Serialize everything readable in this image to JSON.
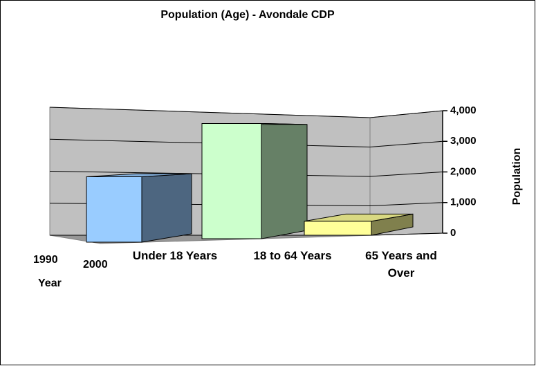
{
  "chart_data": {
    "type": "bar3d",
    "title": "Population (Age) - Avondale CDP",
    "categories": [
      "Under 18 Years",
      "18 to 64 Years",
      "65 Years and Over"
    ],
    "depth_categories": [
      "1990",
      "2000"
    ],
    "depth_label": "Year",
    "y_label": "Population",
    "values": [
      2100,
      3700,
      450
    ],
    "colors": [
      "#99ccff",
      "#ccffcc",
      "#ffff99"
    ],
    "ylim": [
      0,
      4000
    ],
    "yticks": [
      {
        "value": 0,
        "label": "0"
      },
      {
        "value": 1000,
        "label": "1,000"
      },
      {
        "value": 2000,
        "label": "2,000"
      },
      {
        "value": 3000,
        "label": "3,000"
      },
      {
        "value": 4000,
        "label": "4,000"
      }
    ],
    "grid": true
  }
}
